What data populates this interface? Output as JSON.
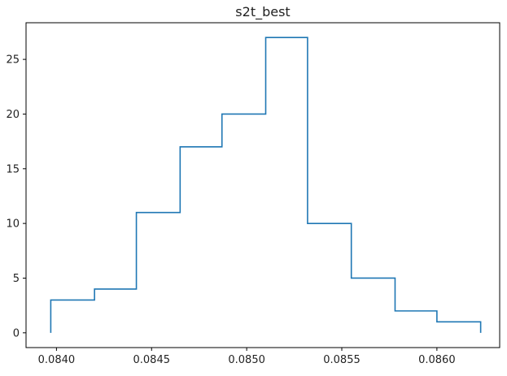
{
  "chart_data": {
    "type": "histogram-step",
    "title": "s2t_best",
    "xlabel": "",
    "ylabel": "",
    "xlim": [
      0.08384,
      0.08633
    ],
    "ylim": [
      -1.35,
      28.35
    ],
    "x_ticks": [
      {
        "value": 0.084,
        "label": "0.0840"
      },
      {
        "value": 0.0845,
        "label": "0.0845"
      },
      {
        "value": 0.085,
        "label": "0.0850"
      },
      {
        "value": 0.0855,
        "label": "0.0855"
      },
      {
        "value": 0.086,
        "label": "0.0860"
      }
    ],
    "y_ticks": [
      {
        "value": 0,
        "label": "0"
      },
      {
        "value": 5,
        "label": "5"
      },
      {
        "value": 10,
        "label": "10"
      },
      {
        "value": 15,
        "label": "15"
      },
      {
        "value": 20,
        "label": "20"
      },
      {
        "value": 25,
        "label": "25"
      }
    ],
    "bin_edges": [
      0.08397,
      0.0842,
      0.08442,
      0.08465,
      0.08487,
      0.0851,
      0.08532,
      0.08555,
      0.08578,
      0.086,
      0.08623
    ],
    "counts": [
      3,
      4,
      11,
      17,
      20,
      27,
      10,
      5,
      2,
      1
    ],
    "line_color": "#1f77b4",
    "grid": false
  }
}
